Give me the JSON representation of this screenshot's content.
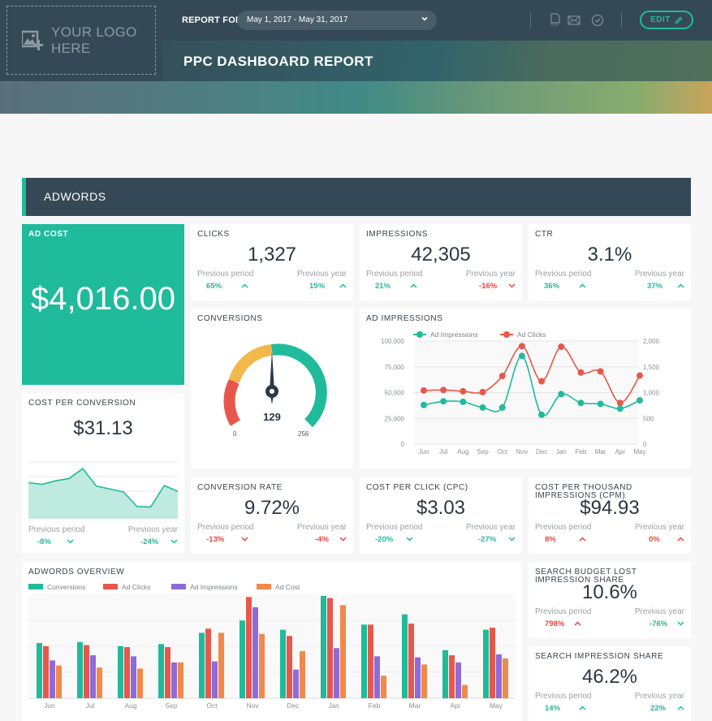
{
  "header": {
    "logo_text_line1": "YOUR LOGO",
    "logo_text_line2": "HERE",
    "report_for_label": "REPORT FOR",
    "date_range": "May 1, 2017 - May 31, 2017",
    "title": "PPC DASHBOARD REPORT",
    "edit_label": "EDIT",
    "icons": [
      "pdf-icon",
      "mail-icon",
      "check-circle-icon",
      "pencil-icon"
    ]
  },
  "section": {
    "title": "ADWORDS"
  },
  "colors": {
    "accent": "#1fbb9b",
    "dark": "#344955",
    "positive": "#1fbb9b",
    "negative": "#e8453c",
    "yellow": "#f2b84b",
    "red": "#e8574c",
    "purple": "#8e6bd8",
    "orange": "#f0894a"
  },
  "kpis": {
    "ad_cost": {
      "title": "AD COST",
      "value": "$4,016.00"
    },
    "clicks": {
      "title": "CLICKS",
      "value": "1,327",
      "prev_period_label": "Previous period",
      "prev_year_label": "Previous year",
      "prev_period": "65%",
      "prev_year": "15%"
    },
    "impressions": {
      "title": "IMPRESSIONS",
      "value": "42,305",
      "prev_period_label": "Previous period",
      "prev_year_label": "Previous year",
      "prev_period": "21%",
      "prev_year": "-16%"
    },
    "ctr": {
      "title": "CTR",
      "value": "3.1%",
      "prev_period_label": "Previous period",
      "prev_year_label": "Previous year",
      "prev_period": "36%",
      "prev_year": "37%"
    },
    "cost_per_conversion": {
      "title": "COST PER CONVERSION",
      "value": "$31.13",
      "prev_period_label": "Previous period",
      "prev_year_label": "Previous year",
      "prev_period": "-8%",
      "prev_year": "-24%"
    },
    "conversion_rate": {
      "title": "CONVERSION RATE",
      "value": "9.72%",
      "prev_period_label": "Previous period",
      "prev_year_label": "Previous year",
      "prev_period": "-13%",
      "prev_year": "-4%"
    },
    "cpc": {
      "title": "COST PER CLICK (CPC)",
      "value": "$3.03",
      "prev_period_label": "Previous period",
      "prev_year_label": "Previous year",
      "prev_period": "-20%",
      "prev_year": "-27%"
    },
    "cpm": {
      "title_line1": "COST PER THOUSAND",
      "title_line2": "IMPRESSIONS (CPM)",
      "value": "$94.93",
      "prev_period_label": "Previous period",
      "prev_year_label": "Previous year",
      "prev_period": "8%",
      "prev_year": "0%"
    },
    "search_budget_lost": {
      "title_line1": "SEARCH BUDGET LOST",
      "title_line2": "IMPRESSION SHARE",
      "value": "10.6%",
      "prev_period_label": "Previous period",
      "prev_year_label": "Previous year",
      "prev_period": "798%",
      "prev_year": "-76%"
    },
    "search_impression_share": {
      "title": "SEARCH IMPRESSION SHARE",
      "value": "46.2%",
      "prev_period_label": "Previous period",
      "prev_year_label": "Previous year",
      "prev_period": "14%",
      "prev_year": "22%"
    }
  },
  "gauge": {
    "title": "CONVERSIONS",
    "value": "129",
    "min": "0",
    "max": "256"
  },
  "chart_data": [
    {
      "type": "line",
      "title": "AD IMPRESSIONS",
      "categories": [
        "Jun",
        "Jul",
        "Aug",
        "Sep",
        "Oct",
        "Nov",
        "Dec",
        "Jan",
        "Feb",
        "Mar",
        "Apr",
        "May"
      ],
      "series": [
        {
          "name": "Ad Impressions",
          "axis": "left",
          "color": "#1fbb9b",
          "values": [
            38000,
            41500,
            41000,
            35500,
            35500,
            85500,
            28500,
            48500,
            40000,
            39000,
            34500,
            42500
          ]
        },
        {
          "name": "Ad Clicks",
          "axis": "right",
          "color": "#e8574c",
          "values": [
            1040,
            1050,
            1025,
            1010,
            1320,
            1900,
            1220,
            1890,
            1390,
            1410,
            800,
            1330
          ]
        }
      ],
      "y_left_ticks": [
        "0",
        "25,000",
        "50,000",
        "75,000",
        "100,000"
      ],
      "y_right_ticks": [
        "0",
        "500",
        "1,000",
        "1,500",
        "2,000"
      ],
      "ylim_left": [
        0,
        100000
      ],
      "ylim_right": [
        0,
        2000
      ],
      "legend_position": "top",
      "grid": true
    },
    {
      "type": "area",
      "title": "COST PER CONVERSION",
      "values": [
        62,
        59,
        65,
        69,
        86,
        56,
        51,
        46,
        21,
        20,
        57,
        47
      ],
      "grid": true
    },
    {
      "type": "bar",
      "title": "ADWORDS OVERVIEW",
      "categories": [
        "Jun",
        "Jul",
        "Aug",
        "Sep",
        "Oct",
        "Nov",
        "Dec",
        "Jan",
        "Feb",
        "Mar",
        "Apr",
        "May"
      ],
      "series": [
        {
          "name": "Conversions",
          "color": "#1fbb9b",
          "values": [
            54,
            55,
            51,
            53,
            64,
            76,
            67,
            100,
            72,
            82,
            47,
            67
          ]
        },
        {
          "name": "Ad Clicks",
          "color": "#e8574c",
          "values": [
            51,
            52,
            50,
            50,
            68,
            99,
            61,
            98,
            72,
            73,
            42,
            69
          ]
        },
        {
          "name": "Ad Impressions",
          "color": "#8e6bd8",
          "values": [
            37,
            42,
            41,
            35,
            36,
            89,
            28,
            49,
            41,
            40,
            35,
            43
          ]
        },
        {
          "name": "Ad Cost",
          "color": "#f0894a",
          "values": [
            32,
            30,
            29,
            35,
            64,
            63,
            46,
            91,
            22,
            33,
            13,
            39
          ]
        }
      ],
      "legend_position": "top",
      "grid": true
    }
  ]
}
